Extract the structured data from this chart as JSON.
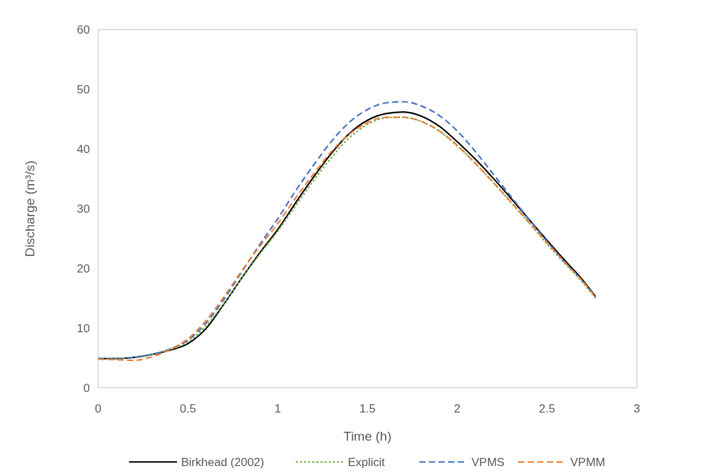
{
  "chart_data": {
    "type": "line",
    "xlabel": "Time (h)",
    "ylabel": "Discharge (m³/s)",
    "xlim": [
      0,
      3
    ],
    "ylim": [
      0,
      60
    ],
    "xticks": [
      0,
      0.5,
      1,
      1.5,
      2,
      2.5,
      3
    ],
    "yticks": [
      0,
      10,
      20,
      30,
      40,
      50,
      60
    ],
    "grid": false,
    "legend": "bottom",
    "x": [
      0,
      0.1,
      0.2,
      0.3,
      0.4,
      0.5,
      0.6,
      0.7,
      0.8,
      0.9,
      1.0,
      1.1,
      1.2,
      1.3,
      1.4,
      1.5,
      1.6,
      1.7,
      1.8,
      1.9,
      2.0,
      2.1,
      2.2,
      2.3,
      2.4,
      2.5,
      2.6,
      2.7,
      2.77
    ],
    "series": [
      {
        "name": "Birkhead (2002)",
        "color": "#000000",
        "line_style": "solid",
        "values": [
          4.9,
          4.9,
          5.1,
          5.6,
          6.3,
          7.4,
          9.9,
          14,
          18.4,
          22.6,
          26.5,
          31,
          35.3,
          39.3,
          42.6,
          44.8,
          45.9,
          46.2,
          45.5,
          43.8,
          41.2,
          38.3,
          35.1,
          31.7,
          28.2,
          24.7,
          21.3,
          18,
          15.3
        ]
      },
      {
        "name": "Explicit",
        "color": "#70ad47",
        "line_style": "dotted",
        "values": [
          4.9,
          4.9,
          5.1,
          5.6,
          6.4,
          7.7,
          10.3,
          14.1,
          18.4,
          22.4,
          26.2,
          30.5,
          34.7,
          38.6,
          41.9,
          44.1,
          45.2,
          45.3,
          44.6,
          43,
          40.5,
          37.6,
          34.4,
          31,
          27.6,
          24.1,
          20.8,
          17.6,
          15.0
        ]
      },
      {
        "name": "VPMS",
        "color": "#4472c4",
        "line_style": "dashed",
        "values": [
          4.9,
          4.9,
          5.1,
          5.6,
          6.5,
          8,
          10.8,
          14.8,
          19.4,
          24,
          28.3,
          33,
          37.3,
          41.3,
          44.5,
          46.6,
          47.7,
          47.9,
          47.2,
          45.6,
          43,
          39.6,
          35.8,
          32,
          28.2,
          24.5,
          21,
          17.8,
          15.2
        ]
      },
      {
        "name": "VPMM",
        "color": "#ed7d31",
        "line_style": "dashed",
        "values": [
          4.8,
          4.7,
          4.6,
          5.2,
          6.4,
          8.2,
          11.2,
          15.2,
          19.6,
          23.7,
          27.5,
          31.8,
          35.8,
          39.6,
          42.5,
          44.4,
          45.3,
          45.3,
          44.6,
          43,
          40.6,
          37.6,
          34.4,
          31.1,
          27.7,
          24.3,
          21,
          17.8,
          15.2
        ]
      }
    ]
  }
}
